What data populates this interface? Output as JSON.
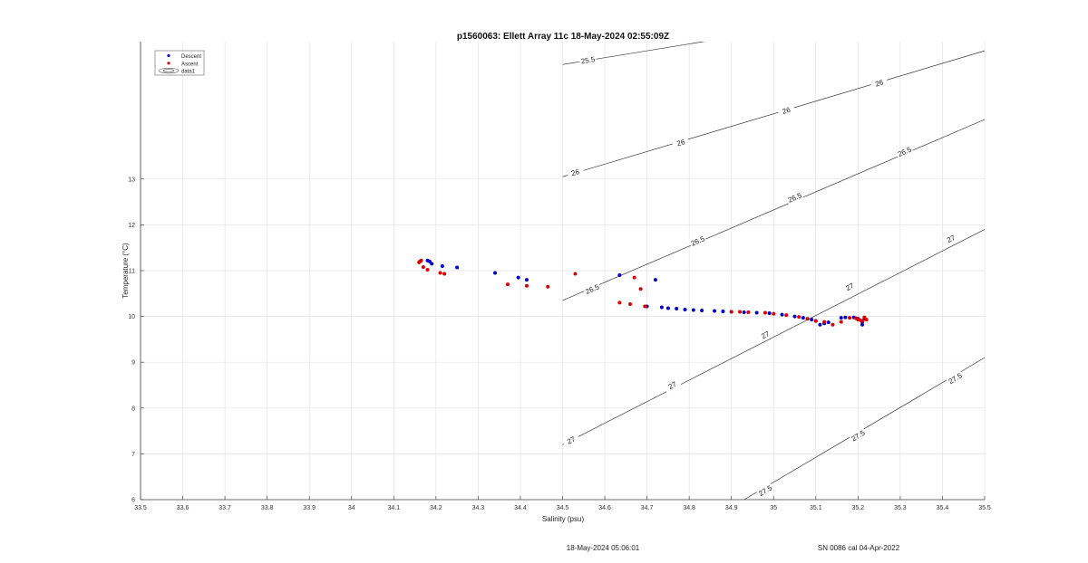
{
  "chart_data": {
    "type": "scatter",
    "title": "p1560063: Ellett Array 11c 18-May-2024 02:55:09Z",
    "xlabel": "Salinity (psu)",
    "ylabel": "Temperature (°C)",
    "xlim": [
      33.5,
      35.5
    ],
    "ylim": [
      6,
      16
    ],
    "x_ticks": [
      "33.5",
      "33.6",
      "33.7",
      "33.8",
      "33.9",
      "34",
      "34.1",
      "34.2",
      "34.3",
      "34.4",
      "34.5",
      "34.6",
      "34.7",
      "34.8",
      "34.9",
      "35",
      "35.1",
      "35.2",
      "35.3",
      "35.4",
      "35.5"
    ],
    "y_ticks": [
      "6",
      "7",
      "8",
      "9",
      "10",
      "11",
      "12",
      "13"
    ],
    "grid": true,
    "legend_position": "top-left",
    "legend": [
      {
        "label": "Descent",
        "marker": "dot",
        "color": "#0000cc"
      },
      {
        "label": "Ascent",
        "marker": "dot",
        "color": "#dd0000"
      },
      {
        "label": "data1",
        "marker": "contour",
        "color": "#555555"
      }
    ],
    "series": [
      {
        "name": "Descent",
        "color": "#0000cc",
        "points": [
          [
            34.18,
            11.22
          ],
          [
            34.185,
            11.2
          ],
          [
            34.19,
            11.15
          ],
          [
            34.215,
            11.1
          ],
          [
            34.25,
            11.07
          ],
          [
            34.34,
            10.95
          ],
          [
            34.395,
            10.85
          ],
          [
            34.415,
            10.8
          ],
          [
            34.635,
            10.9
          ],
          [
            34.72,
            10.8
          ],
          [
            34.7,
            10.22
          ],
          [
            34.735,
            10.2
          ],
          [
            34.75,
            10.18
          ],
          [
            34.77,
            10.17
          ],
          [
            34.79,
            10.15
          ],
          [
            34.81,
            10.14
          ],
          [
            34.83,
            10.13
          ],
          [
            34.86,
            10.12
          ],
          [
            34.88,
            10.11
          ],
          [
            34.9,
            10.1
          ],
          [
            34.93,
            10.09
          ],
          [
            34.96,
            10.08
          ],
          [
            34.99,
            10.07
          ],
          [
            35.02,
            10.04
          ],
          [
            35.05,
            10.0
          ],
          [
            35.07,
            9.97
          ],
          [
            35.09,
            9.93
          ],
          [
            35.1,
            9.9
          ],
          [
            35.11,
            9.82
          ],
          [
            35.12,
            9.85
          ],
          [
            35.13,
            9.87
          ],
          [
            35.16,
            9.97
          ],
          [
            35.17,
            9.98
          ],
          [
            35.19,
            9.98
          ],
          [
            35.2,
            9.95
          ],
          [
            35.21,
            9.88
          ],
          [
            35.21,
            9.82
          ],
          [
            35.215,
            9.95
          ]
        ]
      },
      {
        "name": "Ascent",
        "color": "#dd0000",
        "points": [
          [
            34.16,
            11.18
          ],
          [
            34.162,
            11.2
          ],
          [
            34.165,
            11.22
          ],
          [
            34.17,
            11.08
          ],
          [
            34.18,
            11.02
          ],
          [
            34.21,
            10.95
          ],
          [
            34.22,
            10.93
          ],
          [
            34.37,
            10.7
          ],
          [
            34.415,
            10.67
          ],
          [
            34.465,
            10.65
          ],
          [
            34.53,
            10.93
          ],
          [
            34.635,
            10.3
          ],
          [
            34.66,
            10.27
          ],
          [
            34.67,
            10.85
          ],
          [
            34.685,
            10.6
          ],
          [
            34.695,
            10.22
          ],
          [
            34.9,
            10.1
          ],
          [
            34.92,
            10.1
          ],
          [
            34.94,
            10.09
          ],
          [
            34.98,
            10.08
          ],
          [
            35.0,
            10.06
          ],
          [
            35.03,
            10.03
          ],
          [
            35.06,
            9.99
          ],
          [
            35.08,
            9.95
          ],
          [
            35.1,
            9.9
          ],
          [
            35.12,
            9.88
          ],
          [
            35.14,
            9.82
          ],
          [
            35.16,
            9.88
          ],
          [
            35.18,
            9.97
          ],
          [
            35.195,
            9.96
          ],
          [
            35.2,
            9.93
          ],
          [
            35.205,
            9.92
          ],
          [
            35.21,
            9.9
          ],
          [
            35.22,
            9.93
          ],
          [
            35.215,
            9.98
          ]
        ]
      }
    ],
    "contours": [
      {
        "label": "25.5",
        "points": [
          [
            34.5,
            15.5
          ],
          [
            35.5,
            17.0
          ]
        ],
        "label_positions": [
          [
            34.56,
            15.6
          ]
        ]
      },
      {
        "label": "26",
        "points": [
          [
            34.5,
            13.05
          ],
          [
            35.5,
            15.8
          ]
        ],
        "label_positions": [
          [
            34.53,
            13.15
          ],
          [
            34.78,
            13.8
          ],
          [
            35.03,
            14.5
          ],
          [
            35.25,
            15.1
          ]
        ]
      },
      {
        "label": "26.5",
        "points": [
          [
            34.5,
            10.35
          ],
          [
            35.5,
            14.3
          ]
        ],
        "label_positions": [
          [
            34.57,
            10.6
          ],
          [
            34.82,
            11.65
          ],
          [
            35.05,
            12.6
          ],
          [
            35.31,
            13.6
          ]
        ]
      },
      {
        "label": "27",
        "points": [
          [
            34.5,
            7.2
          ],
          [
            35.5,
            11.9
          ]
        ],
        "label_positions": [
          [
            34.52,
            7.3
          ],
          [
            34.76,
            8.5
          ],
          [
            34.98,
            9.6
          ],
          [
            35.18,
            10.65
          ],
          [
            35.42,
            11.7
          ]
        ]
      },
      {
        "label": "27.5",
        "points": [
          [
            34.93,
            6.0
          ],
          [
            35.5,
            9.1
          ]
        ],
        "label_positions": [
          [
            34.98,
            6.2
          ],
          [
            35.2,
            7.4
          ],
          [
            35.43,
            8.65
          ]
        ]
      }
    ]
  },
  "footer": {
    "date": "18-May-2024 05:06:01",
    "serial": "SN 0086 cal 04-Apr-2022"
  }
}
